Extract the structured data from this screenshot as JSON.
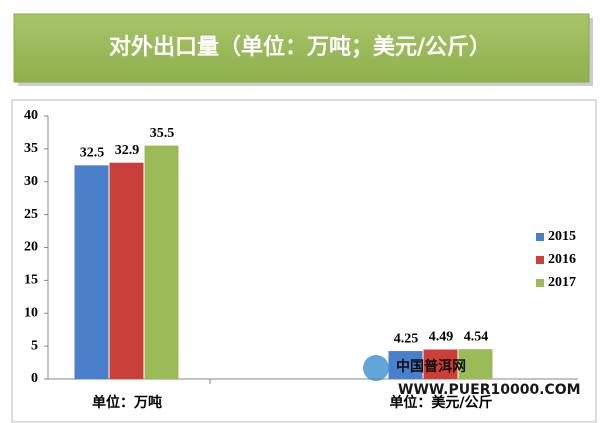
{
  "chart_data": {
    "type": "bar",
    "title": "对外出口量（单位：万吨；美元/公斤）",
    "categories": [
      "单位：万吨",
      "单位：美元/公斤"
    ],
    "series": [
      {
        "name": "2015",
        "color": "#4a7fc9",
        "values": [
          32.5,
          4.25
        ]
      },
      {
        "name": "2016",
        "color": "#c9403a",
        "values": [
          32.9,
          4.49
        ]
      },
      {
        "name": "2017",
        "color": "#9bbb59",
        "values": [
          35.5,
          4.54
        ]
      }
    ],
    "ylim": [
      0,
      40
    ],
    "yticks": [
      0,
      5,
      10,
      15,
      20,
      25,
      30,
      35,
      40
    ],
    "grid": false,
    "legend": "right",
    "watermark": "中国普洱网",
    "watermark_url": "WWW.PUER10000.COM"
  }
}
